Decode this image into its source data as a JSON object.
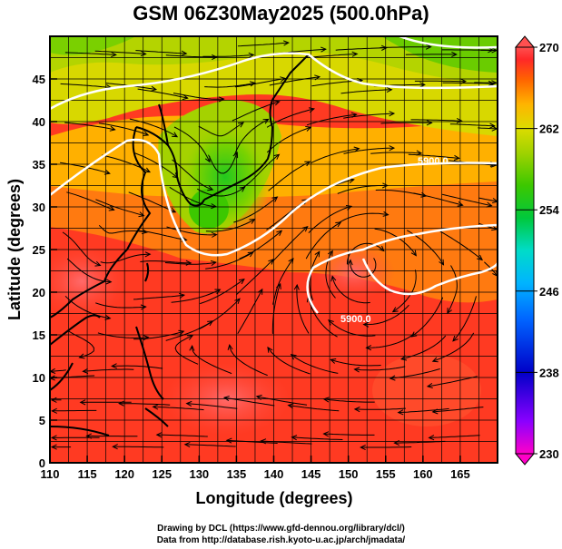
{
  "title": "GSM 06Z30May2025 (500.0hPa)",
  "credits": {
    "line1": "Drawing by DCL (https://www.gfd-dennou.org/library/dcl/)",
    "line2": "Data from http://database.rish.kyoto-u.ac.jp/arch/jmadata/"
  },
  "axes": {
    "xlabel": "Longitude (degrees)",
    "ylabel": "Latitude  (degrees)",
    "x_range": [
      110,
      170
    ],
    "y_range": [
      0,
      50
    ],
    "x_ticks": [
      "110",
      "115",
      "120",
      "125",
      "130",
      "135",
      "140",
      "145",
      "150",
      "155",
      "160",
      "165"
    ],
    "y_ticks": [
      "0",
      "5",
      "10",
      "15",
      "20",
      "25",
      "30",
      "35",
      "40",
      "45"
    ]
  },
  "colorbar": {
    "range": [
      230,
      270
    ],
    "labels": [
      "270",
      "262",
      "254",
      "246",
      "238",
      "230"
    ],
    "colors": [
      "#ff00c8",
      "#8a00ff",
      "#0000c8",
      "#0064ff",
      "#00b4ff",
      "#00dcc8",
      "#00c83c",
      "#3cc800",
      "#a0d200",
      "#dcdc00",
      "#ffb400",
      "#ff6400",
      "#ff2828",
      "#ff5050"
    ]
  },
  "contours": [
    {
      "label": "5900.0"
    },
    {
      "label": "5900.0"
    }
  ],
  "field": {
    "variable": "temperature-shaded with streamlines",
    "features": [
      "trough over Japan",
      "subtropical high near 150E 25N"
    ]
  }
}
